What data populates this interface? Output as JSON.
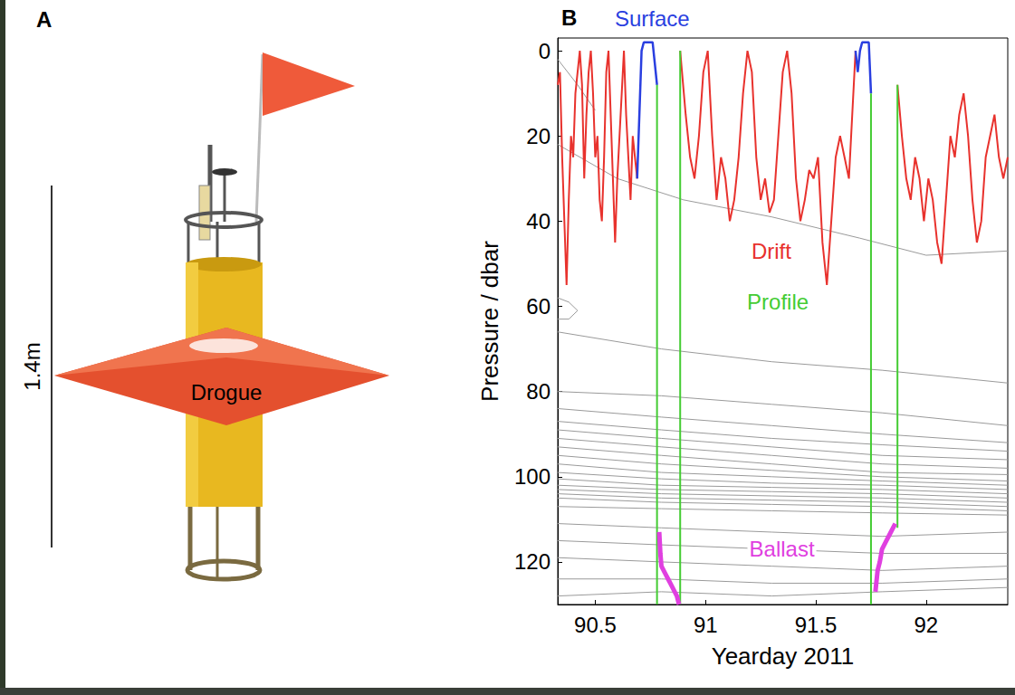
{
  "panel_a": {
    "label": "A",
    "height_label": "1.4m",
    "part_label": "Drogue"
  },
  "chart_data": {
    "type": "line",
    "title": "B",
    "x_label": "Yearday 2011",
    "y_label": "Pressure / dbar",
    "xlim": [
      90.33,
      92.37
    ],
    "xticks": [
      90.5,
      91,
      91.5,
      92
    ],
    "ylim": [
      -3,
      130
    ],
    "yticks": [
      0,
      20,
      40,
      60,
      80,
      100,
      120
    ],
    "grid": false,
    "series": [
      {
        "name": "Drift",
        "color": "#e8322d",
        "x": [
          90.33,
          90.34,
          90.35,
          90.36,
          90.37,
          90.38,
          90.39,
          90.4,
          90.41,
          90.42,
          90.43,
          90.44,
          90.45,
          90.46,
          90.47,
          90.48,
          90.49,
          90.5,
          90.51,
          90.52,
          90.53,
          90.54,
          90.55,
          90.56,
          90.57,
          90.58,
          90.59,
          90.6,
          90.61,
          90.62,
          90.63,
          90.64,
          90.65,
          90.66,
          90.67,
          90.68,
          90.69,
          90.8,
          90.885,
          90.91,
          90.93,
          90.95,
          90.97,
          90.99,
          91.01,
          91.03,
          91.05,
          91.07,
          91.09,
          91.11,
          91.13,
          91.15,
          91.17,
          91.19,
          91.21,
          91.23,
          91.25,
          91.27,
          91.29,
          91.31,
          91.33,
          91.35,
          91.37,
          91.39,
          91.41,
          91.43,
          91.45,
          91.47,
          91.49,
          91.51,
          91.53,
          91.55,
          91.57,
          91.59,
          91.61,
          91.63,
          91.65,
          91.67,
          91.68,
          91.8,
          91.87,
          91.89,
          91.91,
          91.93,
          91.95,
          91.97,
          91.99,
          92.01,
          92.03,
          92.05,
          92.07,
          92.09,
          92.11,
          92.13,
          92.15,
          92.17,
          92.19,
          92.21,
          92.23,
          92.25,
          92.27,
          92.29,
          92.31,
          92.33,
          92.35,
          92.37
        ],
        "values": [
          8,
          5,
          25,
          40,
          55,
          35,
          20,
          25,
          10,
          5,
          0,
          8,
          30,
          15,
          5,
          0,
          10,
          25,
          20,
          35,
          40,
          25,
          5,
          0,
          15,
          30,
          45,
          30,
          20,
          10,
          0,
          15,
          25,
          35,
          20,
          25,
          30,
          null,
          0,
          15,
          25,
          30,
          20,
          5,
          0,
          20,
          35,
          25,
          30,
          40,
          35,
          25,
          10,
          0,
          5,
          25,
          35,
          30,
          38,
          35,
          20,
          5,
          0,
          10,
          30,
          40,
          35,
          28,
          30,
          25,
          45,
          55,
          40,
          25,
          20,
          25,
          30,
          10,
          0,
          null,
          8,
          20,
          30,
          35,
          25,
          30,
          40,
          30,
          35,
          45,
          50,
          35,
          20,
          25,
          15,
          10,
          20,
          35,
          45,
          40,
          25,
          20,
          15,
          25,
          30,
          25
        ]
      },
      {
        "name": "Surface",
        "color": "#2a3fe0",
        "x": [
          90.69,
          90.7,
          90.71,
          90.72,
          90.76,
          90.77,
          90.78,
          91.2,
          91.68,
          91.69,
          91.7,
          91.71,
          91.74,
          91.75
        ],
        "values": [
          30,
          15,
          0,
          -2,
          -2,
          3,
          8,
          null,
          0,
          5,
          0,
          -2,
          -2,
          10
        ]
      },
      {
        "name": "Profile",
        "color": "#44cc33",
        "x": [
          90.78,
          90.78,
          90.83,
          90.885,
          90.885,
          91.3,
          91.75,
          91.75,
          91.8,
          91.87,
          91.87
        ],
        "values": [
          8,
          130,
          null,
          130,
          0,
          null,
          10,
          130,
          null,
          112,
          8
        ]
      },
      {
        "name": "Ballast",
        "color": "#e040e0",
        "x": [
          90.79,
          90.795,
          90.8,
          90.81,
          90.82,
          90.83,
          90.84,
          90.85,
          90.86,
          90.87,
          90.88,
          91.3,
          91.77,
          91.78,
          91.79,
          91.8,
          91.82,
          91.84,
          91.86
        ],
        "values": [
          113,
          118,
          121,
          122,
          123,
          124,
          125,
          126,
          127,
          128,
          130,
          null,
          127,
          122,
          120,
          117,
          115,
          113,
          111
        ]
      }
    ],
    "contours": {
      "color": "#9a9a9a",
      "lines": [
        {
          "x": [
            90.33,
            90.42,
            90.5
          ],
          "values": [
            2,
            8,
            14
          ]
        },
        {
          "x": [
            90.33,
            90.6,
            90.9,
            91.3,
            91.7,
            92.0,
            92.37
          ],
          "values": [
            22,
            30,
            35,
            39,
            44,
            48,
            47
          ]
        },
        {
          "x": [
            90.33,
            90.38,
            90.42,
            90.38,
            90.33
          ],
          "values": [
            58,
            59,
            61,
            63,
            63
          ]
        },
        {
          "x": [
            90.33,
            90.8,
            91.3,
            91.8,
            92.37
          ],
          "values": [
            66,
            70,
            73,
            75,
            78
          ]
        },
        {
          "x": [
            90.33,
            90.8,
            91.3,
            91.8,
            92.37
          ],
          "values": [
            80,
            81,
            83,
            85,
            88
          ]
        },
        {
          "x": [
            90.33,
            90.8,
            91.3,
            91.8,
            92.37
          ],
          "values": [
            84,
            86,
            88,
            90,
            92
          ]
        },
        {
          "x": [
            90.33,
            90.8,
            91.3,
            91.8,
            92.37
          ],
          "values": [
            87,
            89,
            91,
            92.5,
            94
          ]
        },
        {
          "x": [
            90.33,
            90.8,
            91.3,
            91.8,
            92.37
          ],
          "values": [
            89,
            91,
            93,
            95,
            96
          ]
        },
        {
          "x": [
            90.33,
            90.8,
            91.3,
            91.8,
            92.37
          ],
          "values": [
            91,
            93,
            95,
            97,
            98
          ]
        },
        {
          "x": [
            90.33,
            90.8,
            91.3,
            91.8,
            92.37
          ],
          "values": [
            93,
            95,
            97,
            99,
            99.5
          ]
        },
        {
          "x": [
            90.33,
            90.8,
            91.3,
            91.8,
            92.37
          ],
          "values": [
            95,
            97,
            98.5,
            100,
            101
          ]
        },
        {
          "x": [
            90.33,
            90.8,
            91.3,
            91.8,
            92.37
          ],
          "values": [
            97,
            99,
            100,
            101,
            102
          ]
        },
        {
          "x": [
            90.33,
            90.8,
            91.3,
            91.8,
            92.37
          ],
          "values": [
            99,
            100.5,
            101.5,
            102,
            103
          ]
        },
        {
          "x": [
            90.33,
            90.8,
            91.3,
            91.8,
            92.37
          ],
          "values": [
            100.5,
            102,
            102.5,
            103,
            104
          ]
        },
        {
          "x": [
            90.33,
            90.8,
            91.3,
            91.8,
            92.37
          ],
          "values": [
            102,
            103,
            103.5,
            104,
            105
          ]
        },
        {
          "x": [
            90.33,
            90.8,
            91.3,
            91.8,
            92.37
          ],
          "values": [
            103,
            104,
            104.5,
            105,
            106
          ]
        },
        {
          "x": [
            90.33,
            90.8,
            91.3,
            91.8,
            92.37
          ],
          "values": [
            104,
            105,
            105.5,
            106,
            107
          ]
        },
        {
          "x": [
            90.33,
            90.8,
            91.3,
            91.8,
            92.37
          ],
          "values": [
            105,
            106,
            106.5,
            107,
            108
          ]
        },
        {
          "x": [
            90.33,
            90.8,
            91.3,
            91.8,
            92.37
          ],
          "values": [
            107,
            107.5,
            108,
            108.5,
            109
          ]
        },
        {
          "x": [
            90.33,
            90.8,
            91.3,
            91.8,
            92.37
          ],
          "values": [
            111,
            112,
            113,
            114,
            113
          ]
        },
        {
          "x": [
            90.33,
            90.8,
            91.3,
            91.8,
            92.37
          ],
          "values": [
            115,
            116,
            117,
            118,
            118
          ]
        },
        {
          "x": [
            90.33,
            90.8,
            91.3,
            91.8,
            92.37
          ],
          "values": [
            119,
            120,
            121,
            122,
            121
          ]
        },
        {
          "x": [
            90.33,
            90.8,
            91.3,
            91.8,
            92.37
          ],
          "values": [
            124,
            124,
            125,
            125,
            124
          ]
        },
        {
          "x": [
            90.33,
            90.8,
            91.3,
            91.8,
            92.37
          ],
          "values": [
            128,
            127,
            128,
            127,
            126
          ]
        }
      ]
    }
  }
}
